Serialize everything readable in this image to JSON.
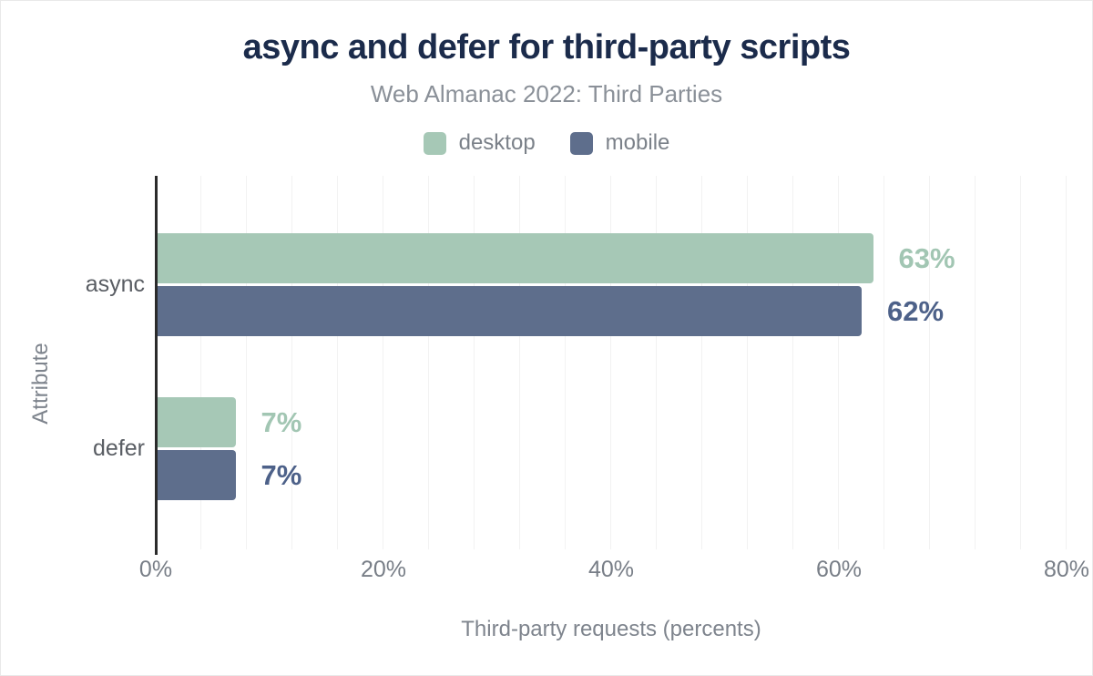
{
  "chart": {
    "title": "async and defer for third-party scripts",
    "subtitle": "Web Almanac 2022: Third Parties",
    "x_axis_label": "Third-party requests (percents)",
    "y_axis_label": "Attribute"
  },
  "legend": [
    {
      "label": "desktop",
      "color": "#a6c8b6"
    },
    {
      "label": "mobile",
      "color": "#5e6e8c"
    }
  ],
  "chart_data": {
    "type": "bar",
    "orientation": "horizontal",
    "title": "async and defer for third-party scripts",
    "subtitle": "Web Almanac 2022: Third Parties",
    "xlabel": "Third-party requests (percents)",
    "ylabel": "Attribute",
    "categories": [
      "async",
      "defer"
    ],
    "series": [
      {
        "name": "desktop",
        "color": "#a6c8b6",
        "label_color": "#a2c6b3",
        "values": [
          63,
          7
        ],
        "value_labels": [
          "63%",
          "7%"
        ]
      },
      {
        "name": "mobile",
        "color": "#5e6e8c",
        "label_color": "#4d6189",
        "values": [
          62,
          7
        ],
        "value_labels": [
          "62%",
          "7%"
        ]
      }
    ],
    "x_ticks": [
      {
        "label": "0%",
        "value": 0
      },
      {
        "label": "20%",
        "value": 20
      },
      {
        "label": "40%",
        "value": 40
      },
      {
        "label": "60%",
        "value": 60
      },
      {
        "label": "80%",
        "value": 80
      }
    ],
    "xlim": [
      0,
      80
    ],
    "minor_grid_step": 4,
    "grid": true,
    "legend_position": "top",
    "colors": {
      "title": "#1b2b4b",
      "subtitle": "#8a9098",
      "axis_line": "#2b2b2b",
      "gridline": "#f2f2f2",
      "tick_label": "#787e87",
      "category_label": "#595d63"
    }
  }
}
